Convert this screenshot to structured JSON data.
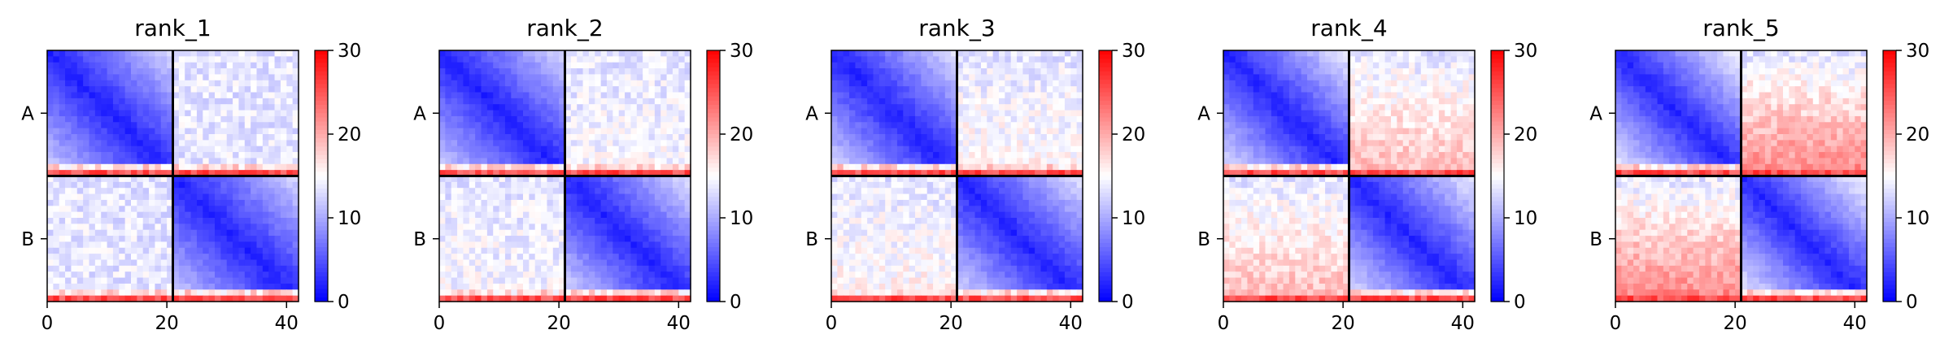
{
  "chart_data": [
    {
      "type": "heatmap",
      "title": "rank_1",
      "n": 42,
      "chain_break": 21,
      "xticks": [
        0,
        20,
        40
      ],
      "ylabels": [
        "A",
        "B"
      ],
      "xlim": [
        0,
        42
      ],
      "colorbar": {
        "ticks": [
          0,
          10,
          20,
          30
        ],
        "range": [
          0,
          30
        ],
        "colormap": "bwr"
      },
      "profile": {
        "gain_a": 1.0,
        "gain_b": 1.0,
        "inter_a": 0.0,
        "inter_b": 0.0,
        "terminal_high": true
      }
    },
    {
      "type": "heatmap",
      "title": "rank_2",
      "n": 42,
      "chain_break": 21,
      "xticks": [
        0,
        20,
        40
      ],
      "ylabels": [
        "A",
        "B"
      ],
      "xlim": [
        0,
        42
      ],
      "colorbar": {
        "ticks": [
          0,
          10,
          20,
          30
        ],
        "range": [
          0,
          30
        ],
        "colormap": "bwr"
      },
      "profile": {
        "gain_a": 1.0,
        "gain_b": 1.05,
        "inter_a": 0.5,
        "inter_b": 0.5,
        "terminal_high": true
      }
    },
    {
      "type": "heatmap",
      "title": "rank_3",
      "n": 42,
      "chain_break": 21,
      "xticks": [
        0,
        20,
        40
      ],
      "ylabels": [
        "A",
        "B"
      ],
      "xlim": [
        0,
        42
      ],
      "colorbar": {
        "ticks": [
          0,
          10,
          20,
          30
        ],
        "range": [
          0,
          30
        ],
        "colormap": "bwr"
      },
      "profile": {
        "gain_a": 1.05,
        "gain_b": 1.05,
        "inter_a": 1.0,
        "inter_b": 1.0,
        "terminal_high": true
      }
    },
    {
      "type": "heatmap",
      "title": "rank_4",
      "n": 42,
      "chain_break": 21,
      "xticks": [
        0,
        20,
        40
      ],
      "ylabels": [
        "A",
        "B"
      ],
      "xlim": [
        0,
        42
      ],
      "colorbar": {
        "ticks": [
          0,
          10,
          20,
          30
        ],
        "range": [
          0,
          30
        ],
        "colormap": "bwr"
      },
      "profile": {
        "gain_a": 1.1,
        "gain_b": 1.1,
        "inter_a": 2.5,
        "inter_b": 2.5,
        "terminal_high": true
      }
    },
    {
      "type": "heatmap",
      "title": "rank_5",
      "n": 42,
      "chain_break": 21,
      "xticks": [
        0,
        20,
        40
      ],
      "ylabels": [
        "A",
        "B"
      ],
      "xlim": [
        0,
        42
      ],
      "colorbar": {
        "ticks": [
          0,
          10,
          20,
          30
        ],
        "range": [
          0,
          30
        ],
        "colormap": "bwr"
      },
      "profile": {
        "gain_a": 1.15,
        "gain_b": 1.15,
        "inter_a": 4.0,
        "inter_b": 4.0,
        "terminal_high": true
      }
    }
  ]
}
